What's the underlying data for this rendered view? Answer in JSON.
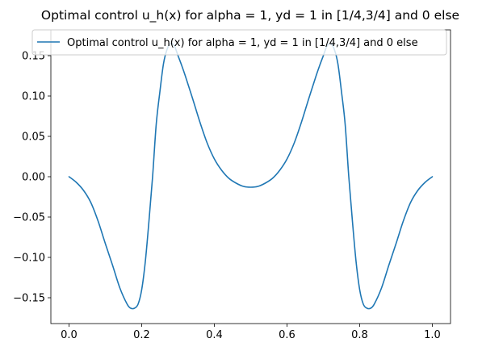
{
  "chart_data": {
    "type": "line",
    "title": "Optimal control u_h(x) for alpha = 1, yd = 1 in [1/4,3/4] and 0 else",
    "xlabel": "",
    "ylabel": "",
    "xlim": [
      -0.05,
      1.05
    ],
    "ylim": [
      -0.182,
      0.182
    ],
    "xticks": [
      {
        "value": 0.0,
        "label": "0.0"
      },
      {
        "value": 0.2,
        "label": "0.2"
      },
      {
        "value": 0.4,
        "label": "0.4"
      },
      {
        "value": 0.6,
        "label": "0.6"
      },
      {
        "value": 0.8,
        "label": "0.8"
      },
      {
        "value": 1.0,
        "label": "1.0"
      }
    ],
    "yticks": [
      {
        "value": -0.15,
        "label": "−0.15"
      },
      {
        "value": -0.1,
        "label": "−0.10"
      },
      {
        "value": -0.05,
        "label": "−0.05"
      },
      {
        "value": 0.0,
        "label": "0.00"
      },
      {
        "value": 0.05,
        "label": "0.05"
      },
      {
        "value": 0.1,
        "label": "0.10"
      },
      {
        "value": 0.15,
        "label": "0.15"
      }
    ],
    "grid": false,
    "legend_position": "top-right",
    "series": [
      {
        "name": "Optimal control u_h(x) for alpha = 1, yd = 1 in [1/4,3/4] and 0 else",
        "color": "#1f77b4",
        "x": [
          0.0,
          0.02,
          0.04,
          0.06,
          0.08,
          0.1,
          0.12,
          0.14,
          0.16,
          0.17,
          0.18,
          0.19,
          0.2,
          0.21,
          0.22,
          0.23,
          0.24,
          0.25,
          0.26,
          0.27,
          0.28,
          0.29,
          0.3,
          0.31,
          0.32,
          0.34,
          0.36,
          0.38,
          0.4,
          0.42,
          0.44,
          0.46,
          0.48,
          0.5,
          0.52,
          0.54,
          0.56,
          0.58,
          0.6,
          0.62,
          0.64,
          0.66,
          0.68,
          0.69,
          0.7,
          0.71,
          0.72,
          0.73,
          0.74,
          0.75,
          0.76,
          0.77,
          0.78,
          0.79,
          0.8,
          0.81,
          0.82,
          0.83,
          0.84,
          0.86,
          0.88,
          0.9,
          0.92,
          0.94,
          0.96,
          0.98,
          1.0
        ],
        "y": [
          0.0,
          -0.007,
          -0.017,
          -0.032,
          -0.055,
          -0.083,
          -0.11,
          -0.138,
          -0.158,
          -0.163,
          -0.163,
          -0.158,
          -0.14,
          -0.105,
          -0.055,
          0.0,
          0.065,
          0.105,
          0.14,
          0.158,
          0.165,
          0.162,
          0.15,
          0.138,
          0.125,
          0.097,
          0.068,
          0.042,
          0.022,
          0.008,
          -0.002,
          -0.008,
          -0.012,
          -0.013,
          -0.012,
          -0.008,
          -0.002,
          0.008,
          0.022,
          0.042,
          0.068,
          0.097,
          0.125,
          0.138,
          0.15,
          0.162,
          0.165,
          0.158,
          0.14,
          0.105,
          0.065,
          0.0,
          -0.055,
          -0.105,
          -0.14,
          -0.158,
          -0.163,
          -0.163,
          -0.158,
          -0.138,
          -0.11,
          -0.083,
          -0.055,
          -0.032,
          -0.017,
          -0.007,
          0.0
        ]
      }
    ]
  }
}
